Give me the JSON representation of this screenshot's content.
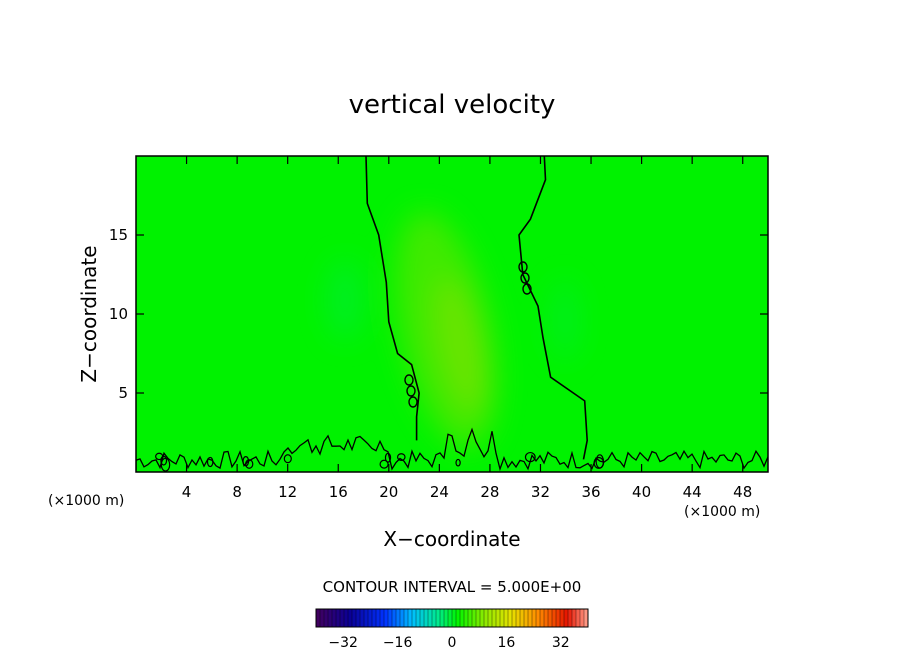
{
  "chart_data": {
    "type": "heatmap",
    "title": "vertical velocity",
    "xlabel": "X−coordinate",
    "ylabel": "Z−coordinate",
    "x_unit_left": "(×1000 m)",
    "x_unit_right": "(×1000 m)",
    "xlim": [
      0,
      50
    ],
    "ylim": [
      0,
      20
    ],
    "x_ticks": [
      4,
      8,
      12,
      16,
      20,
      24,
      28,
      32,
      36,
      40,
      44,
      48
    ],
    "x_tick_labels": [
      "4",
      "8",
      "12",
      "16",
      "20",
      "24",
      "28",
      "32",
      "36",
      "40",
      "44",
      "48"
    ],
    "y_ticks": [
      5,
      10,
      15
    ],
    "y_tick_labels": [
      "5",
      "10",
      "15"
    ],
    "contour_level": 0,
    "contour_labels": [
      "0.0",
      "0.0"
    ],
    "contour_interval_text": "CONTOUR INTERVAL = 5.000E+00",
    "colorbar": {
      "min": -40,
      "max": 40,
      "tick_values": [
        -32,
        -16,
        0,
        16,
        32
      ],
      "tick_labels": [
        "−32",
        "−16",
        "0",
        "16",
        "32"
      ]
    },
    "contour_left": [
      [
        18.2,
        20
      ],
      [
        18.3,
        17
      ],
      [
        19.2,
        15
      ],
      [
        19.8,
        12
      ],
      [
        20.0,
        9.5
      ],
      [
        20.7,
        7.5
      ],
      [
        21.8,
        6.8
      ],
      [
        22.4,
        5.0
      ],
      [
        22.2,
        3.5
      ],
      [
        22.2,
        2.0
      ]
    ],
    "contour_right": [
      [
        32.3,
        20
      ],
      [
        32.4,
        18.5
      ],
      [
        31.2,
        16
      ],
      [
        30.3,
        15
      ],
      [
        30.6,
        12.5
      ],
      [
        31.8,
        10.5
      ],
      [
        32.2,
        8.5
      ],
      [
        32.8,
        6.0
      ],
      [
        35.5,
        4.5
      ],
      [
        35.7,
        2.0
      ],
      [
        35.4,
        0.8
      ]
    ],
    "colors": {
      "background_field": "#00f200",
      "contour_line": "#000000"
    }
  }
}
